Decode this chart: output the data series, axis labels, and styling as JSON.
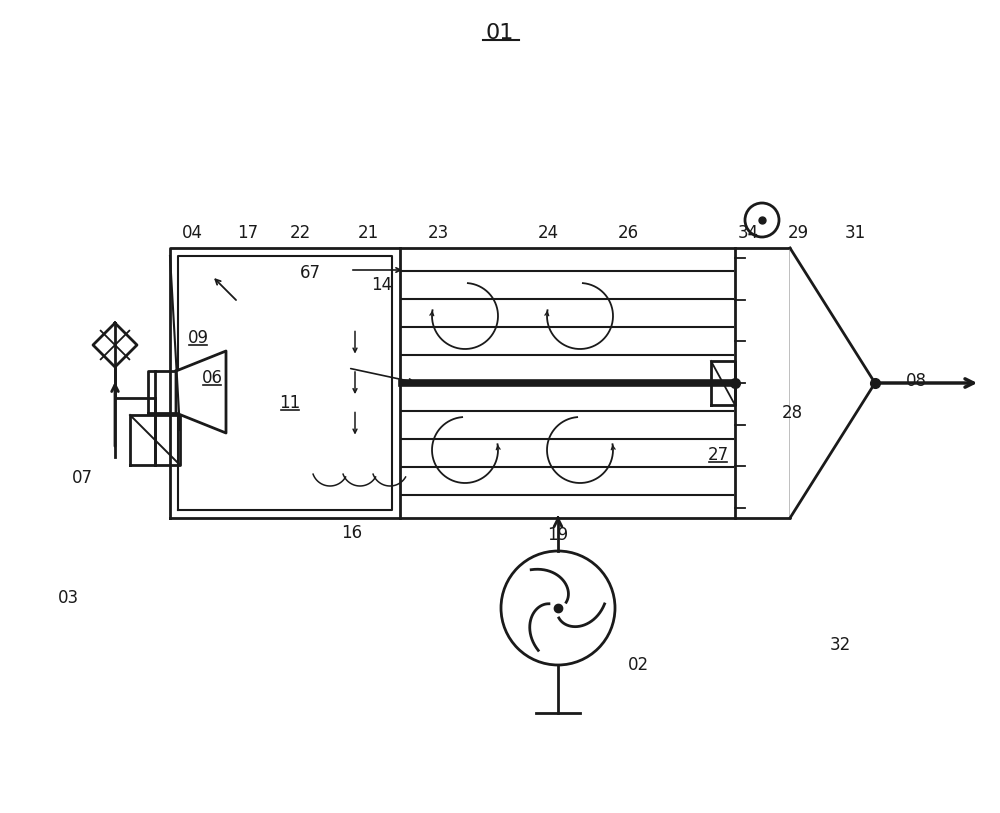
{
  "bg_color": "#ffffff",
  "lc": "#1a1a1a",
  "fig_width": 10.0,
  "fig_height": 8.13
}
